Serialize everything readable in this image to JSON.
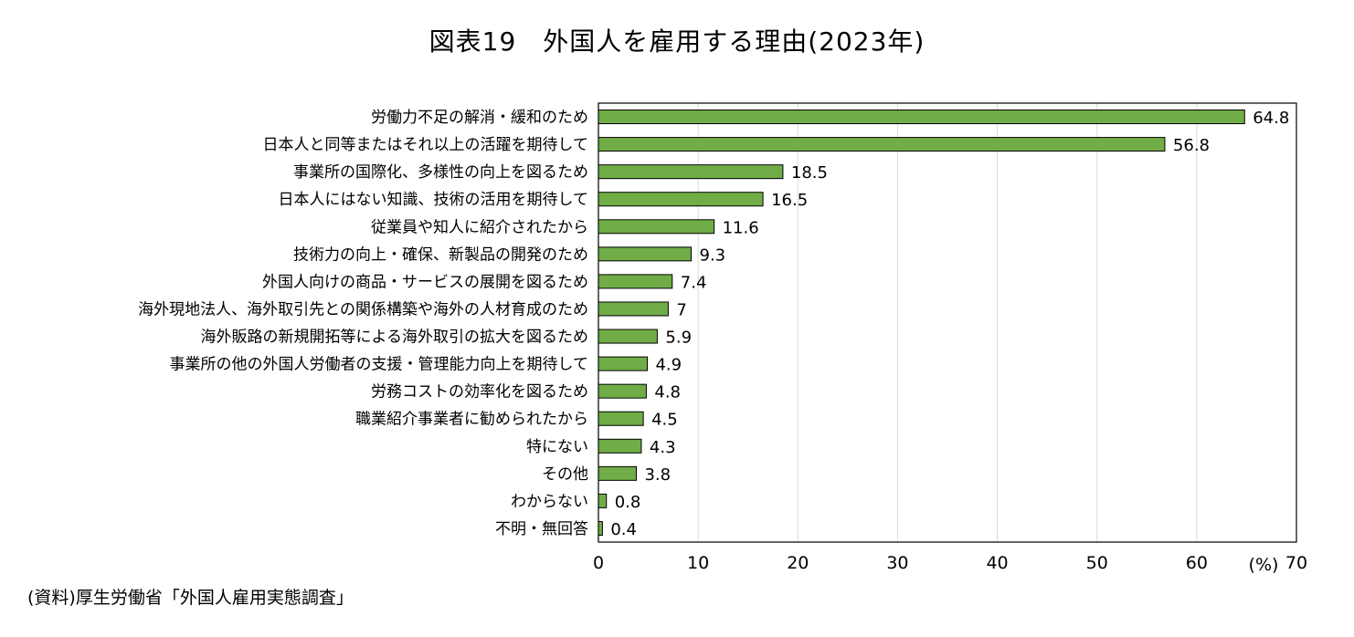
{
  "title": "図表19　外国人を雇用する理由(2023年)",
  "source": "(資料)厚生労働省「外国人雇用実態調査」",
  "colors": {
    "bar": "#70AD47",
    "bar_stroke": "#000000",
    "grid": "#d9d9d9",
    "axis": "#000000"
  },
  "chart_data": {
    "type": "bar",
    "orientation": "horizontal",
    "title": "図表19　外国人を雇用する理由(2023年)",
    "xlabel": "(%)",
    "ylabel": "",
    "xlim": [
      0,
      70
    ],
    "x_ticks": [
      "0",
      "10",
      "20",
      "30",
      "40",
      "50",
      "60",
      "70"
    ],
    "grid": true,
    "categories": [
      "労働力不足の解消・緩和のため",
      "日本人と同等またはそれ以上の活躍を期待して",
      "事業所の国際化、多様性の向上を図るため",
      "日本人にはない知識、技術の活用を期待して",
      "従業員や知人に紹介されたから",
      "技術力の向上・確保、新製品の開発のため",
      "外国人向けの商品・サービスの展開を図るため",
      "海外現地法人、海外取引先との関係構築や海外の人材育成のため",
      "海外販路の新規開拓等による海外取引の拡大を図るため",
      "事業所の他の外国人労働者の支援・管理能力向上を期待して",
      "労務コストの効率化を図るため",
      "職業紹介事業者に勧められたから",
      "特にない",
      "その他",
      "わからない",
      "不明・無回答"
    ],
    "values": [
      64.8,
      56.8,
      18.5,
      16.5,
      11.6,
      9.3,
      7.4,
      7,
      5.9,
      4.9,
      4.8,
      4.5,
      4.3,
      3.8,
      0.8,
      0.4
    ],
    "value_labels": [
      "64.8",
      "56.8",
      "18.5",
      "16.5",
      "11.6",
      "9.3",
      "7.4",
      "7",
      "5.9",
      "4.9",
      "4.8",
      "4.5",
      "4.3",
      "3.8",
      "0.8",
      "0.4"
    ]
  }
}
